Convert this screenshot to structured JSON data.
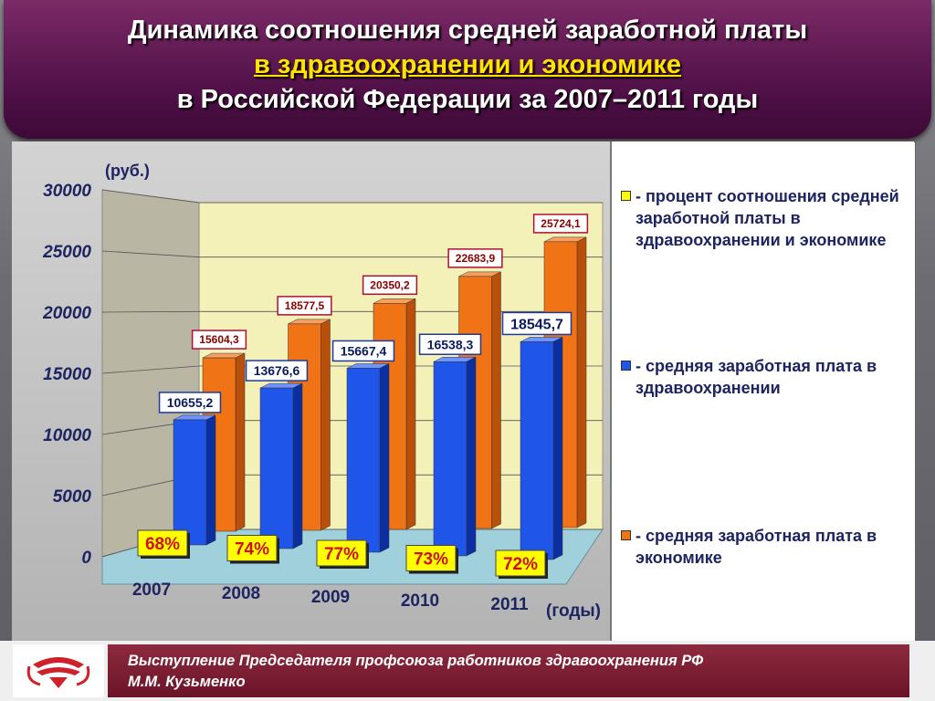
{
  "header": {
    "line1": "Динамика соотношения средней заработной платы",
    "line2": "в здравоохранении и экономике",
    "line3": "в Российской Федерации за 2007–2011 годы"
  },
  "chart_data": {
    "type": "bar",
    "unit_label": "(руб.)",
    "x_unit_label": "(годы)",
    "categories": [
      "2007",
      "2008",
      "2009",
      "2010",
      "2011"
    ],
    "ylim": [
      0,
      30000
    ],
    "yticks": [
      "0",
      "5000",
      "10000",
      "15000",
      "20000",
      "25000",
      "30000"
    ],
    "series": [
      {
        "name": "- средняя заработная плата в здравоохранении",
        "color": "#1f55e8",
        "values": [
          10655.2,
          13676.6,
          15667.4,
          16538.3,
          18545.7
        ],
        "labels": [
          "10655,2",
          "13676,6",
          "15667,4",
          "16538,3",
          "18545,7"
        ]
      },
      {
        "name": "- средняя заработная плата в экономике",
        "color": "#f07316",
        "values": [
          15604.3,
          18577.5,
          20350.2,
          22683.9,
          25724.1
        ],
        "labels": [
          "15604,3",
          "18577,5",
          "20350,2",
          "22683,9",
          "25724,1"
        ]
      }
    ],
    "percent_name": "- процент соотношения средней заработной платы в здравоохранении и экономике",
    "percent_color": "#ffff00",
    "percent": [
      "68%",
      "74%",
      "77%",
      "73%",
      "72%"
    ],
    "grid": true,
    "legend_position": "right"
  },
  "footer": {
    "line1": "Выступление Председателя профсоюза работников здравоохранения РФ",
    "line2": "М.М. Кузьменко"
  }
}
